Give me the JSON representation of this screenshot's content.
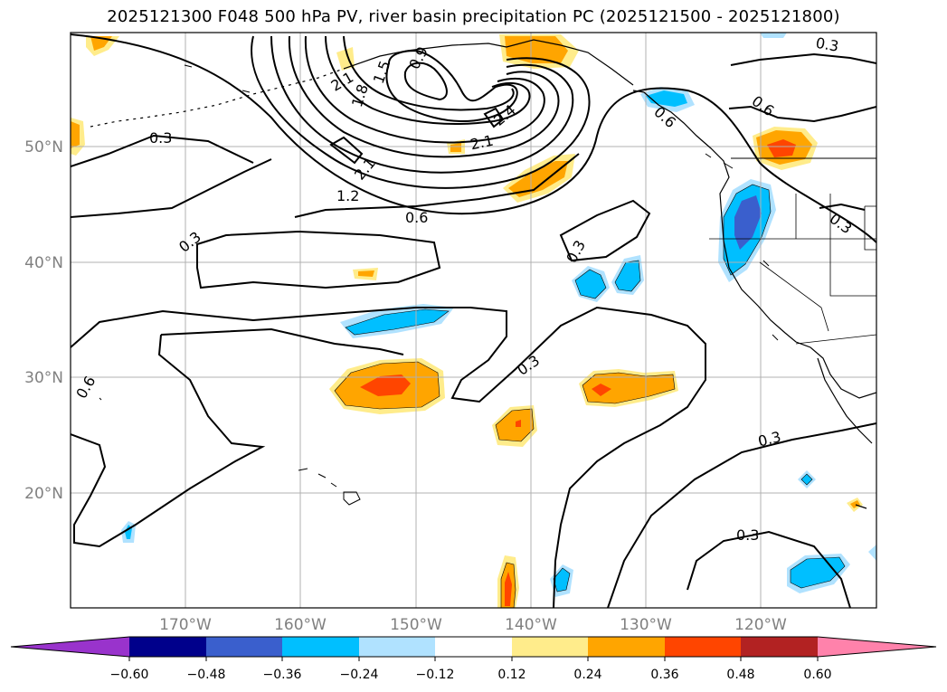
{
  "title": "2025121300 F048 500 hPa PV, river basin precipitation PC (2025121500 - 2025121800)",
  "lat_labels": [
    "50°N",
    "40°N",
    "30°N",
    "20°N"
  ],
  "lon_labels": [
    "170°W",
    "160°W",
    "150°W",
    "140°W",
    "130°W",
    "120°W"
  ],
  "contour_labels": [
    "0.3",
    "0.6",
    "0.9",
    "1.2",
    "1.5",
    "1.8",
    "2.1",
    "2.4"
  ],
  "colorbar": {
    "ticks": [
      "−0.60",
      "−0.48",
      "−0.36",
      "−0.24",
      "−0.12",
      "0.12",
      "0.24",
      "0.36",
      "0.48",
      "0.60"
    ],
    "colors": {
      "under": "#9933cc",
      "b1": "#00008b",
      "b2": "#3a5fcd",
      "b3": "#00bfff",
      "b4": "#b0e2ff",
      "b5": "#ffffff",
      "b6": "#ffec8b",
      "b7": "#ffa500",
      "b8": "#ff4500",
      "b9": "#b22222",
      "over": "#ff82ab"
    }
  }
}
